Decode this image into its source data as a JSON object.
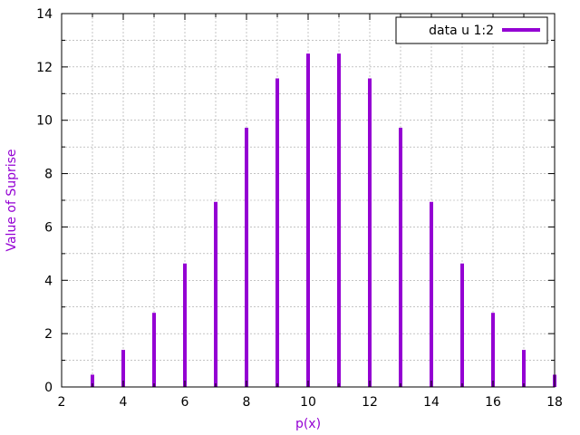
{
  "chart_data": {
    "type": "bar",
    "title": "",
    "xlabel": "p(x)",
    "ylabel": "Value of Suprise",
    "xlim": [
      2,
      18
    ],
    "ylim": [
      0,
      14
    ],
    "xticks": [
      2,
      4,
      6,
      8,
      10,
      12,
      14,
      16,
      18
    ],
    "yticks": [
      0,
      2,
      4,
      6,
      8,
      10,
      12,
      14
    ],
    "grid": true,
    "legend": {
      "placement": "top-right",
      "entries": [
        "data u 1:2"
      ]
    },
    "series": [
      {
        "name": "data u 1:2",
        "color": "#9400d3",
        "x": [
          3,
          4,
          5,
          6,
          7,
          8,
          9,
          10,
          11,
          12,
          13,
          14,
          15,
          16,
          17,
          18
        ],
        "y": [
          0.46,
          1.39,
          2.78,
          4.63,
          6.94,
          9.72,
          11.57,
          12.5,
          12.5,
          11.57,
          9.72,
          6.94,
          4.63,
          2.78,
          1.39,
          0.46
        ]
      }
    ]
  }
}
